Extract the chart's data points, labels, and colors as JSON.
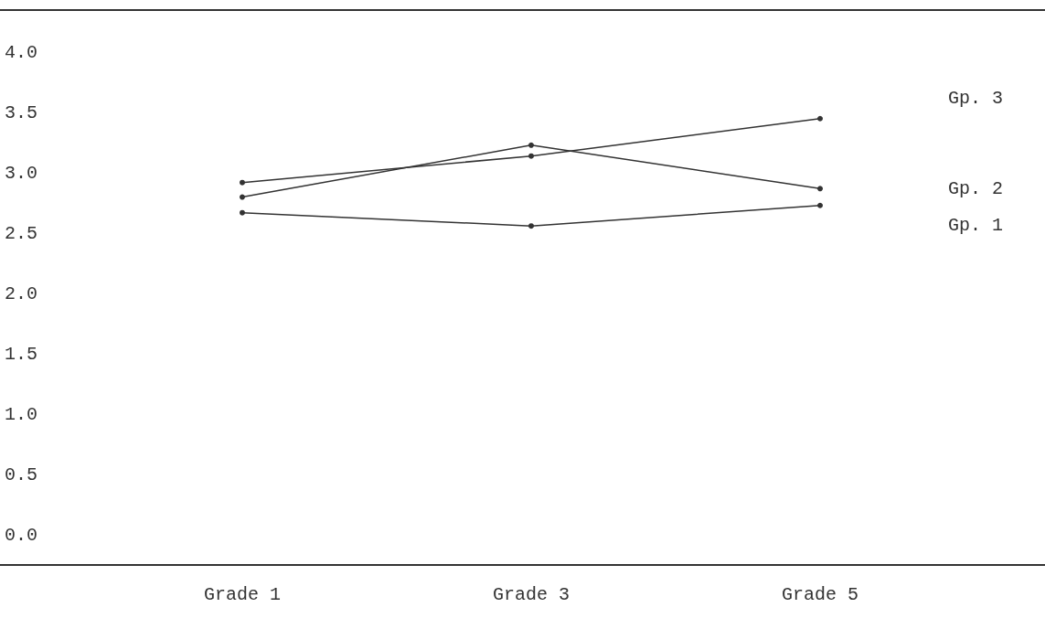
{
  "chart_data": {
    "type": "line",
    "categories": [
      "Grade 1",
      "Grade 3",
      "Grade 5"
    ],
    "series": [
      {
        "name": "Gp. 3",
        "color": "#333333",
        "values": [
          2.92,
          3.14,
          3.45
        ]
      },
      {
        "name": "Gp. 2",
        "color": "#333333",
        "values": [
          2.8,
          3.23,
          2.87
        ]
      },
      {
        "name": "Gp. 1",
        "color": "#333333",
        "values": [
          2.67,
          2.56,
          2.73
        ]
      }
    ],
    "ylim": [
      -0.25,
      4.35
    ],
    "yticks": [
      {
        "value": 0,
        "label": "0.0"
      },
      {
        "value": 0.5,
        "label": "0.5"
      },
      {
        "value": 1,
        "label": "1.0"
      },
      {
        "value": 1.5,
        "label": "1.5"
      },
      {
        "value": 2,
        "label": "2.0"
      },
      {
        "value": 2.5,
        "label": "2.5"
      },
      {
        "value": 3,
        "label": "3.0"
      },
      {
        "value": 3.5,
        "label": "3.5"
      },
      {
        "value": 4,
        "label": "4.0"
      }
    ],
    "grid": false,
    "legend": false,
    "marker": "circle",
    "line_style": "solid"
  }
}
